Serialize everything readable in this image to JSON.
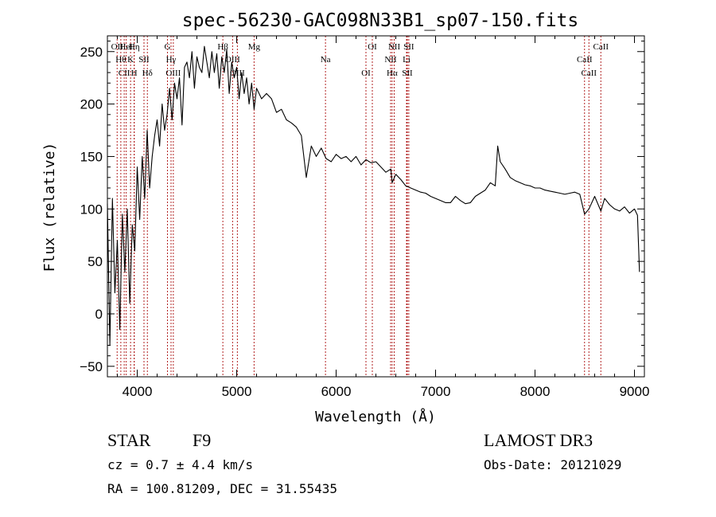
{
  "chart_data": {
    "type": "line",
    "title": "spec-56230-GAC098N33B1_sp07-150.fits",
    "xlabel": "Wavelength (Å)",
    "ylabel": "Flux (relative)",
    "xlim": [
      3700,
      9100
    ],
    "ylim": [
      -60,
      265
    ],
    "xticks": [
      4000,
      5000,
      6000,
      7000,
      8000,
      9000
    ],
    "yticks": [
      -50,
      0,
      50,
      100,
      150,
      200,
      250
    ],
    "grid": false,
    "series": [
      {
        "name": "flux",
        "x": [
          3700,
          3725,
          3750,
          3775,
          3800,
          3825,
          3850,
          3875,
          3900,
          3925,
          3950,
          3975,
          4000,
          4025,
          4050,
          4075,
          4100,
          4125,
          4150,
          4175,
          4200,
          4225,
          4250,
          4275,
          4300,
          4325,
          4350,
          4375,
          4400,
          4425,
          4450,
          4475,
          4500,
          4525,
          4550,
          4575,
          4600,
          4625,
          4650,
          4675,
          4700,
          4725,
          4750,
          4775,
          4800,
          4825,
          4850,
          4875,
          4900,
          4925,
          4950,
          4975,
          5000,
          5025,
          5050,
          5075,
          5100,
          5125,
          5150,
          5175,
          5200,
          5250,
          5300,
          5350,
          5400,
          5450,
          5500,
          5550,
          5600,
          5650,
          5700,
          5750,
          5800,
          5850,
          5900,
          5950,
          6000,
          6050,
          6100,
          6150,
          6200,
          6250,
          6300,
          6350,
          6400,
          6450,
          6500,
          6550,
          6563,
          6600,
          6650,
          6700,
          6750,
          6800,
          6850,
          6900,
          6950,
          7000,
          7050,
          7100,
          7150,
          7200,
          7250,
          7300,
          7350,
          7400,
          7450,
          7500,
          7550,
          7600,
          7625,
          7650,
          7700,
          7750,
          7800,
          7850,
          7900,
          7950,
          8000,
          8050,
          8100,
          8150,
          8200,
          8250,
          8300,
          8350,
          8400,
          8450,
          8498,
          8542,
          8600,
          8662,
          8700,
          8750,
          8800,
          8850,
          8900,
          8950,
          9000,
          9030,
          9050
        ],
        "values": [
          105,
          -30,
          110,
          20,
          70,
          -15,
          95,
          40,
          100,
          10,
          85,
          60,
          140,
          90,
          150,
          110,
          175,
          120,
          150,
          170,
          185,
          160,
          200,
          175,
          190,
          215,
          185,
          220,
          205,
          225,
          180,
          235,
          240,
          225,
          250,
          215,
          245,
          235,
          230,
          255,
          240,
          225,
          250,
          230,
          248,
          215,
          245,
          230,
          252,
          210,
          240,
          225,
          235,
          205,
          230,
          210,
          225,
          200,
          220,
          195,
          215,
          205,
          210,
          205,
          192,
          195,
          185,
          182,
          178,
          170,
          130,
          160,
          150,
          158,
          148,
          145,
          152,
          148,
          150,
          145,
          150,
          142,
          147,
          144,
          145,
          140,
          135,
          138,
          125,
          133,
          128,
          122,
          120,
          118,
          116,
          115,
          112,
          110,
          108,
          106,
          106,
          112,
          108,
          105,
          106,
          112,
          115,
          118,
          125,
          122,
          160,
          145,
          138,
          130,
          127,
          125,
          123,
          122,
          120,
          120,
          118,
          117,
          116,
          115,
          114,
          115,
          116,
          114,
          95,
          100,
          112,
          98,
          110,
          104,
          100,
          98,
          102,
          96,
          100,
          94,
          40
        ]
      }
    ],
    "lines": [
      {
        "wl": 3798,
        "label": "OII"
      },
      {
        "wl": 3835,
        "label": "Hθ"
      },
      {
        "wl": 3869,
        "label": "CII"
      },
      {
        "wl": 3889,
        "label": "HeI"
      },
      {
        "wl": 3933,
        "label": "K"
      },
      {
        "wl": 3969,
        "label": "H"
      },
      {
        "wl": 3970,
        "label": "Hη"
      },
      {
        "wl": 4068,
        "label": "SII"
      },
      {
        "wl": 4102,
        "label": "Hδ"
      },
      {
        "wl": 4304,
        "label": "G"
      },
      {
        "wl": 4340,
        "label": "Hγ"
      },
      {
        "wl": 4363,
        "label": "OIII"
      },
      {
        "wl": 4861,
        "label": "Hβ"
      },
      {
        "wl": 4959,
        "label": "OIII"
      },
      {
        "wl": 5007,
        "label": "OIII"
      },
      {
        "wl": 5175,
        "label": "Mg"
      },
      {
        "wl": 5893,
        "label": "Na"
      },
      {
        "wl": 6300,
        "label": "OI"
      },
      {
        "wl": 6364,
        "label": "OI"
      },
      {
        "wl": 6548,
        "label": "NII"
      },
      {
        "wl": 6563,
        "label": "Hα"
      },
      {
        "wl": 6584,
        "label": "NII"
      },
      {
        "wl": 6708,
        "label": "Li"
      },
      {
        "wl": 6716,
        "label": "SII"
      },
      {
        "wl": 6731,
        "label": "SII"
      },
      {
        "wl": 8498,
        "label": "CaII"
      },
      {
        "wl": 8542,
        "label": "CaII"
      },
      {
        "wl": 8662,
        "label": "CaII"
      }
    ]
  },
  "info": {
    "object_class": "STAR",
    "subclass": "F9",
    "survey": "LAMOST DR3",
    "cz": "cz = 0.7 ± 4.4 km/s",
    "obs_date": "Obs-Date: 20121029",
    "coords": "RA = 100.81209, DEC =  31.55435"
  },
  "colors": {
    "axis": "#000000",
    "spectrum": "#000000",
    "line_marker": "#b22222"
  }
}
